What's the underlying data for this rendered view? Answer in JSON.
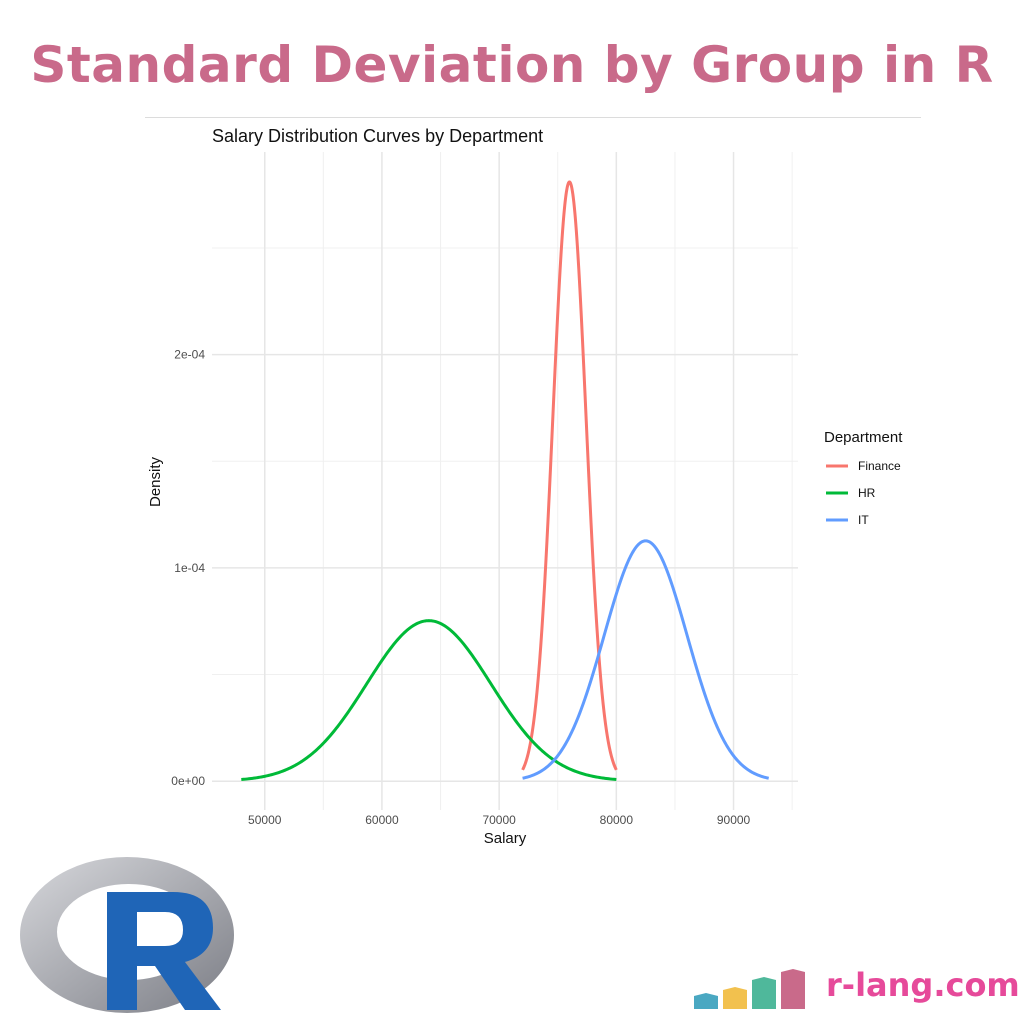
{
  "banner": {
    "title": "Standard Deviation by Group in R"
  },
  "brand": {
    "site": "r-lang.com",
    "logo_icon": "r-logo-icon",
    "bars_icon": "bar-chart-icon"
  },
  "chart_data": {
    "type": "line",
    "title": "Salary Distribution Curves by Department",
    "xlabel": "Salary",
    "ylabel": "Density",
    "xlim": [
      45500,
      95500
    ],
    "ylim": [
      -1.35e-05,
      0.000295
    ],
    "x_ticks": [
      50000,
      60000,
      70000,
      80000,
      90000
    ],
    "x_tick_labels": [
      "50000",
      "60000",
      "70000",
      "80000",
      "90000"
    ],
    "y_ticks": [
      0,
      0.0001,
      0.0002
    ],
    "y_tick_labels": [
      "0e+00",
      "1e-04",
      "2e-04"
    ],
    "grid": true,
    "legend": {
      "title": "Department",
      "position": "right"
    },
    "series": [
      {
        "name": "Finance",
        "color": "#f8766d",
        "mean": 76000,
        "sd": 1420,
        "range": [
          72000,
          80000
        ]
      },
      {
        "name": "HR",
        "color": "#00ba38",
        "mean": 64000,
        "sd": 5300,
        "range": [
          48000,
          80000
        ]
      },
      {
        "name": "IT",
        "color": "#619cff",
        "mean": 82500,
        "sd": 3540,
        "range": [
          72000,
          93000
        ]
      }
    ]
  }
}
